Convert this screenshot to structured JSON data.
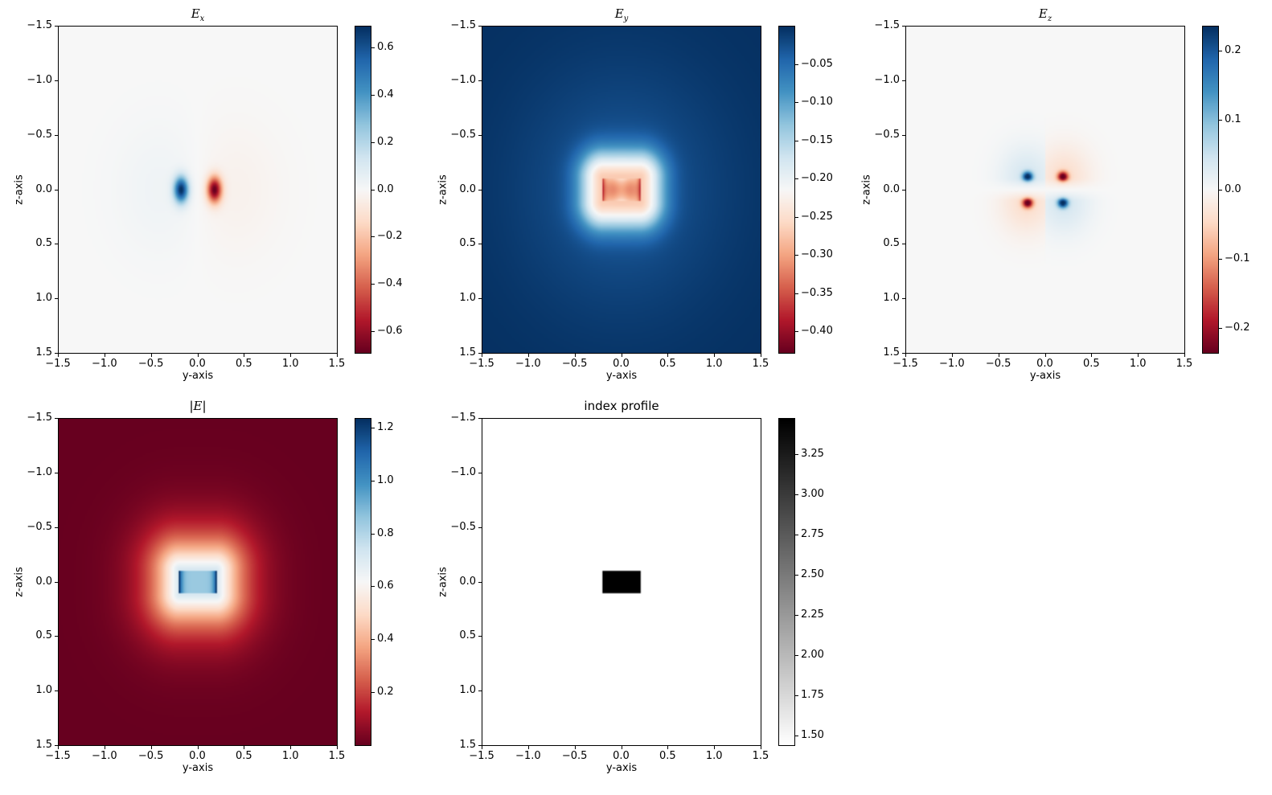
{
  "chart_data": {
    "type": "heatmap",
    "x_ticks": [
      "−1.5",
      "−1.0",
      "−0.5",
      "0.0",
      "0.5",
      "1.0",
      "1.5"
    ],
    "y_ticks": [
      "−1.5",
      "−1.0",
      "−0.5",
      "0.0",
      "0.5",
      "1.0",
      "1.5"
    ],
    "x_values": [
      -1.5,
      -1.0,
      -0.5,
      0.0,
      0.5,
      1.0,
      1.5
    ],
    "xlim": [
      -1.5,
      1.5
    ],
    "ylim": [
      -1.5,
      1.5
    ],
    "xlabel": "y-axis",
    "ylabel": "z-axis",
    "core": {
      "y": [
        -0.2,
        0.2
      ],
      "z": [
        -0.11,
        0.11
      ]
    },
    "panels": [
      {
        "id": "ex",
        "title_main": "E",
        "title_sub": "x",
        "title_abs": false,
        "cmap": "RdBu",
        "vmin": -0.69,
        "vmax": 0.69,
        "cb_ticks": [
          0.6,
          0.4,
          0.2,
          0.0,
          -0.2,
          -0.4,
          -0.6
        ],
        "cb_labels": [
          "0.6",
          "0.4",
          "0.2",
          "0.0",
          "−0.2",
          "−0.4",
          "−0.6"
        ]
      },
      {
        "id": "ey",
        "title_main": "E",
        "title_sub": "y",
        "title_abs": false,
        "cmap": "RdBu",
        "vmin": -0.428,
        "vmax": 0.0,
        "cb_ticks": [
          -0.05,
          -0.1,
          -0.15,
          -0.2,
          -0.25,
          -0.3,
          -0.35,
          -0.4
        ],
        "cb_labels": [
          "−0.05",
          "−0.10",
          "−0.15",
          "−0.20",
          "−0.25",
          "−0.30",
          "−0.35",
          "−0.40"
        ]
      },
      {
        "id": "ez",
        "title_main": "E",
        "title_sub": "z",
        "title_abs": false,
        "cmap": "RdBu",
        "vmin": -0.236,
        "vmax": 0.236,
        "cb_ticks": [
          0.2,
          0.1,
          0.0,
          -0.1,
          -0.2
        ],
        "cb_labels": [
          "0.2",
          "0.1",
          "0.0",
          "−0.1",
          "−0.2"
        ]
      },
      {
        "id": "eabs",
        "title_main": "E",
        "title_sub": "",
        "title_abs": true,
        "cmap": "RdBu",
        "vmin": 0.0,
        "vmax": 1.236,
        "cb_ticks": [
          1.2,
          1.0,
          0.8,
          0.6,
          0.4,
          0.2
        ],
        "cb_labels": [
          "1.2",
          "1.0",
          "0.8",
          "0.6",
          "0.4",
          "0.2"
        ]
      },
      {
        "id": "index",
        "title_text": "index profile",
        "cmap": "Greys",
        "vmin": 1.44,
        "vmax": 3.475,
        "cb_ticks": [
          3.25,
          3.0,
          2.75,
          2.5,
          2.25,
          2.0,
          1.75,
          1.5
        ],
        "cb_labels": [
          "3.25",
          "3.00",
          "2.75",
          "2.50",
          "2.25",
          "2.00",
          "1.75",
          "1.50"
        ]
      }
    ]
  }
}
